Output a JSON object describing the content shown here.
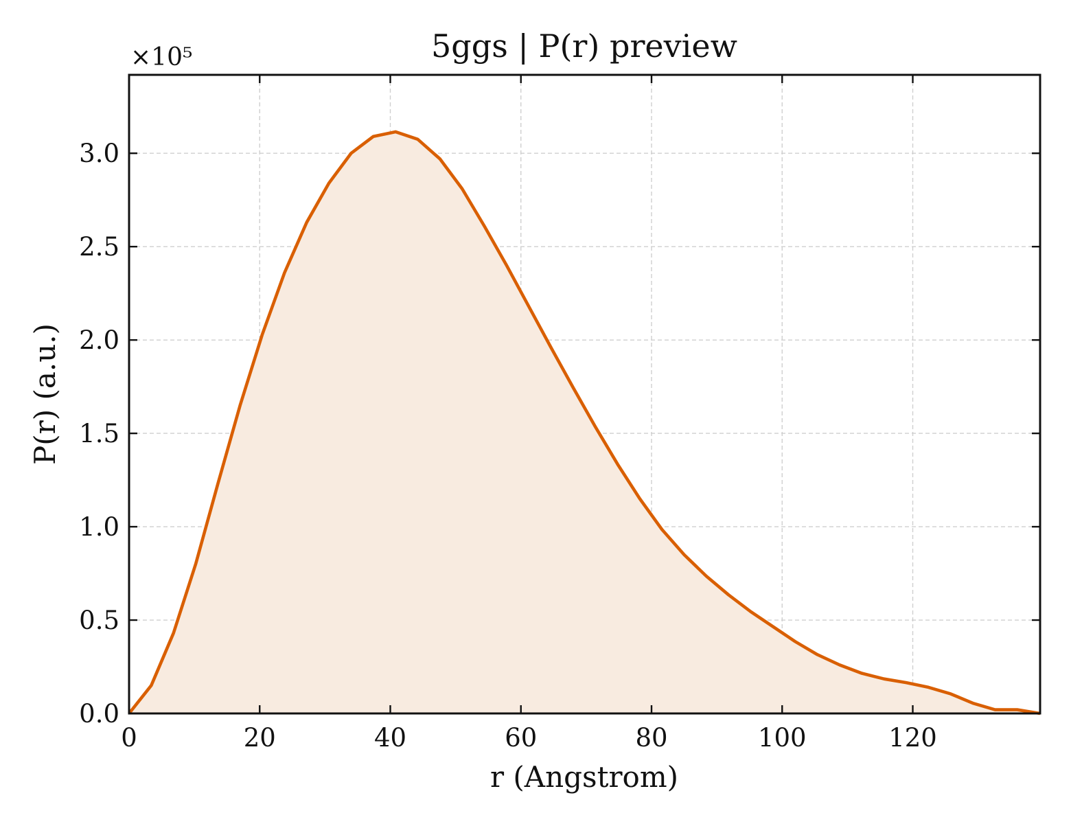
{
  "chart_data": {
    "type": "area",
    "title": "5ggs | P(r) preview",
    "xlabel": "r (Angstrom)",
    "ylabel": "P(r) (a.u.)",
    "y_multiplier_label": "×10⁵",
    "y_scale": 100000,
    "xlim": [
      0,
      139.5
    ],
    "ylim": [
      0,
      342000
    ],
    "x_ticks": [
      0,
      20,
      40,
      60,
      80,
      100,
      120
    ],
    "x_tick_labels": [
      "0",
      "20",
      "40",
      "60",
      "80",
      "100",
      "120"
    ],
    "y_ticks": [
      0,
      50000,
      100000,
      150000,
      200000,
      250000,
      300000
    ],
    "y_tick_labels": [
      "0.0",
      "0.5",
      "1.0",
      "1.5",
      "2.0",
      "2.5",
      "3.0"
    ],
    "grid": true,
    "line_color": "#d95f02",
    "fill_color": "#f8ebe0",
    "series": [
      {
        "x": [
          0,
          3.4,
          6.8,
          10.2,
          13.6,
          17.0,
          20.4,
          23.8,
          27.2,
          30.6,
          34.0,
          37.4,
          40.8,
          44.2,
          47.6,
          51.0,
          54.4,
          57.8,
          61.2,
          64.6,
          68.0,
          71.4,
          74.8,
          78.2,
          81.6,
          85.0,
          88.4,
          91.8,
          95.2,
          98.6,
          102.0,
          105.4,
          108.8,
          112.2,
          115.6,
          119.0,
          122.4,
          125.8,
          129.2,
          132.6,
          136.0,
          139.5
        ],
        "y": [
          0,
          15000,
          43000,
          80000,
          123000,
          165000,
          203000,
          236000,
          263000,
          284000,
          300000,
          309000,
          311500,
          307500,
          297000,
          281000,
          261000,
          240000,
          218000,
          196000,
          174500,
          153500,
          133500,
          115000,
          98500,
          85000,
          73500,
          63500,
          54500,
          46500,
          38500,
          31500,
          26000,
          21500,
          18500,
          16500,
          14000,
          10500,
          5500,
          2000,
          2000,
          0
        ]
      }
    ]
  }
}
